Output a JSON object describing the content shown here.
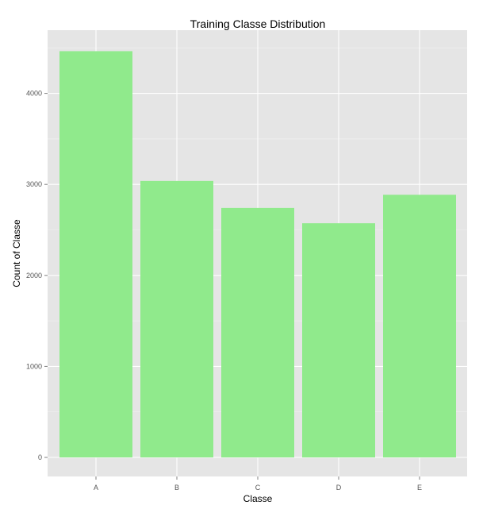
{
  "chart_data": {
    "type": "bar",
    "title": "Training Classe Distribution",
    "xlabel": "Classe",
    "ylabel": "Count of Classe",
    "categories": [
      "A",
      "B",
      "C",
      "D",
      "E"
    ],
    "values": [
      4464,
      3038,
      2741,
      2573,
      2886
    ],
    "ylim": [
      0,
      4700
    ],
    "yticks": [
      0,
      1000,
      2000,
      3000,
      4000
    ],
    "grid": true,
    "colors": {
      "bar": "#90EA8C",
      "panel": "#E5E5E5",
      "grid_major": "#FFFFFF",
      "grid_minor": "#F2F2F2",
      "tick_text": "#555555"
    }
  }
}
